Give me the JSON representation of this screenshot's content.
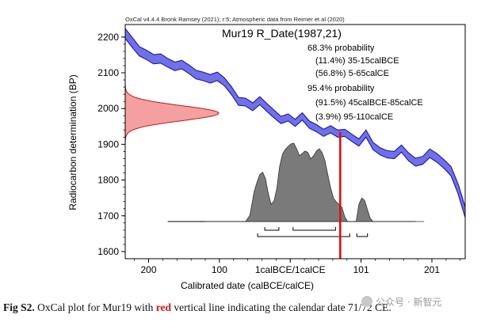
{
  "chart_data": {
    "type": "area",
    "header": "OxCal v4.4.4 Bronk Ramsey (2021); r:5; Atmospheric data from Reimer et al (2020)",
    "title": "Mur19 R_Date(1987,21)",
    "xlabel": "Calibrated date (calBCE/calCE)",
    "ylabel": "Radiocarbon determination (BP)",
    "ylim": [
      1580,
      2235
    ],
    "y_ticks": [
      1600,
      1700,
      1800,
      1900,
      2000,
      2100,
      2200
    ],
    "x_ticks": [
      "200",
      "100",
      "1calBCE/1calCE",
      "101",
      "201"
    ],
    "grid": false,
    "legend": "none",
    "probability_text": [
      "68.3% probability",
      "(11.4%) 35-15calBCE",
      "(56.8%) 5-65calCE",
      "95.4% probability",
      "(91.5%) 45calBCE-85calCE",
      "(3.9%) 95-110calCE"
    ],
    "calibration_curve": {
      "x": [
        -232,
        -222,
        -212,
        -202,
        -192,
        -182,
        -172,
        -162,
        -152,
        -142,
        -132,
        -122,
        -112,
        -102,
        -92,
        -82,
        -72,
        -62,
        -52,
        -42,
        -32,
        -22,
        -12,
        -2,
        8,
        18,
        28,
        38,
        48,
        58,
        68,
        78,
        88,
        98,
        108,
        118,
        128,
        138,
        148,
        158,
        168,
        178,
        188,
        198,
        208,
        218,
        228,
        238,
        248
      ],
      "y": [
        2210,
        2185,
        2160,
        2150,
        2138,
        2140,
        2128,
        2118,
        2123,
        2110,
        2095,
        2090,
        2083,
        2090,
        2075,
        2050,
        2020,
        2018,
        2005,
        2022,
        2003,
        1985,
        1968,
        1975,
        1960,
        1978,
        1955,
        1945,
        1932,
        1942,
        1930,
        1932,
        1918,
        1905,
        1930,
        1895,
        1880,
        1872,
        1870,
        1888,
        1865,
        1850,
        1855,
        1875,
        1862,
        1845,
        1825,
        1775,
        1710
      ],
      "halfwidth": [
        14,
        14,
        13,
        13,
        13,
        13,
        12,
        12,
        12,
        12,
        12,
        12,
        12,
        12,
        11,
        11,
        11,
        11,
        11,
        11,
        11,
        11,
        10,
        10,
        10,
        10,
        10,
        10,
        10,
        10,
        10,
        10,
        10,
        10,
        10,
        10,
        10,
        10,
        10,
        10,
        11,
        11,
        11,
        12,
        12,
        12,
        13,
        14,
        15
      ]
    },
    "radiocarbon_distribution": {
      "mean": 1987,
      "sd": 21
    },
    "posterior": {
      "x": [
        -120,
        -110,
        -100,
        -90,
        -80,
        -70,
        -62,
        -56,
        -50,
        -46,
        -42,
        -38,
        -34,
        -30,
        -26,
        -22,
        -18,
        -14,
        -10,
        -6,
        -2,
        2,
        6,
        10,
        14,
        18,
        22,
        26,
        30,
        34,
        38,
        42,
        46,
        50,
        54,
        58,
        62,
        66,
        70,
        74,
        78,
        82,
        86,
        90,
        94,
        98,
        102,
        106,
        110,
        114,
        118,
        122,
        130,
        140,
        150,
        160,
        170,
        180,
        190
      ],
      "y": [
        0,
        0,
        0,
        0,
        0,
        0,
        0,
        0.08,
        0.38,
        0.5,
        0.6,
        0.63,
        0.55,
        0.36,
        0.22,
        0.26,
        0.42,
        0.7,
        0.86,
        0.92,
        0.96,
        0.99,
        1.0,
        0.93,
        0.84,
        0.87,
        0.9,
        0.88,
        0.8,
        0.84,
        0.9,
        0.93,
        0.88,
        0.78,
        0.6,
        0.43,
        0.3,
        0.25,
        0.22,
        0.18,
        0.06,
        0.0,
        0.0,
        0.0,
        0.0,
        0.22,
        0.3,
        0.27,
        0.15,
        0.04,
        0,
        0,
        0,
        0,
        0,
        0,
        0,
        0,
        0
      ]
    },
    "ranges_68": [
      [
        -35,
        -15
      ],
      [
        5,
        65
      ]
    ],
    "ranges_95": [
      [
        -45,
        85
      ],
      [
        95,
        110
      ]
    ],
    "marker_line_x": 71.5,
    "colors": {
      "curve_fill": "#7070e8",
      "curve_edge": "#1a1aa0",
      "radiocarbon_fill": "#f4a0a0",
      "radiocarbon_edge": "#c01818",
      "posterior_fill": "#7a7a7a",
      "marker_line": "#dd1111"
    }
  },
  "caption": {
    "label": "Fig S2.",
    "text_before": " OxCal plot for Mur19 with ",
    "highlight": "red",
    "text_after": " vertical line indicating the calendar date 71/72 CE."
  },
  "watermark": "公众号 · 新智元"
}
